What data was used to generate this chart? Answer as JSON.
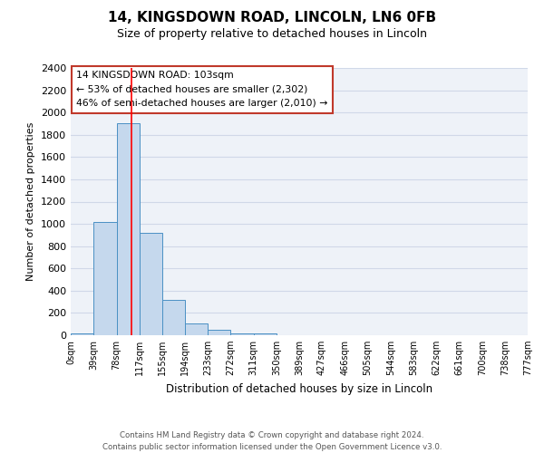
{
  "title": "14, KINGSDOWN ROAD, LINCOLN, LN6 0FB",
  "subtitle": "Size of property relative to detached houses in Lincoln",
  "xlabel": "Distribution of detached houses by size in Lincoln",
  "ylabel": "Number of detached properties",
  "footer_line1": "Contains HM Land Registry data © Crown copyright and database right 2024.",
  "footer_line2": "Contains public sector information licensed under the Open Government Licence v3.0.",
  "bin_edges": [
    0,
    39,
    78,
    117,
    155,
    194,
    233,
    272,
    311,
    350,
    389,
    427,
    466,
    505,
    544,
    583,
    622,
    661,
    700,
    738,
    777
  ],
  "bin_labels": [
    "0sqm",
    "39sqm",
    "78sqm",
    "117sqm",
    "155sqm",
    "194sqm",
    "233sqm",
    "272sqm",
    "311sqm",
    "350sqm",
    "389sqm",
    "427sqm",
    "466sqm",
    "505sqm",
    "544sqm",
    "583sqm",
    "622sqm",
    "661sqm",
    "700sqm",
    "738sqm",
    "777sqm"
  ],
  "bar_heights": [
    20,
    1020,
    1900,
    920,
    315,
    105,
    47,
    20,
    15,
    0,
    0,
    0,
    0,
    0,
    0,
    0,
    0,
    0,
    0,
    0
  ],
  "bar_color": "#c5d8ed",
  "bar_edge_color": "#4a90c4",
  "red_line_x": 103,
  "ylim": [
    0,
    2400
  ],
  "yticks": [
    0,
    200,
    400,
    600,
    800,
    1000,
    1200,
    1400,
    1600,
    1800,
    2000,
    2200,
    2400
  ],
  "annotation_title": "14 KINGSDOWN ROAD: 103sqm",
  "annotation_line1": "← 53% of detached houses are smaller (2,302)",
  "annotation_line2": "46% of semi-detached houses are larger (2,010) →",
  "grid_color": "#d0d8e8",
  "background_color": "#eef2f8"
}
